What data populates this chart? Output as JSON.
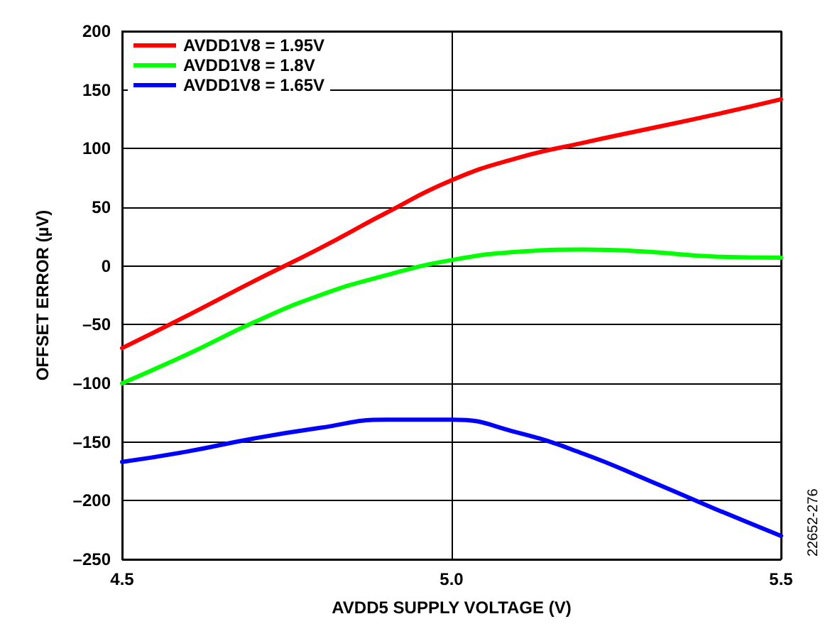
{
  "chart_data": {
    "type": "line",
    "xlabel": "AVDD5 SUPPLY VOLTAGE (V)",
    "ylabel": "OFFSET ERROR (µV)",
    "x": [
      4.5,
      4.6,
      4.7,
      4.8,
      4.9,
      5.0,
      5.1,
      5.2,
      5.3,
      5.4,
      5.5
    ],
    "series": [
      {
        "name": "AVDD1V8 = 1.95V",
        "color": "#ff0000",
        "values": [
          -70,
          -42,
          -13,
          15,
          45,
          73,
          92,
          105,
          117,
          129,
          142
        ]
      },
      {
        "name": "AVDD1V8 = 1.8V",
        "color": "#00ff00",
        "values": [
          -100,
          -75,
          -48,
          -25,
          -8,
          5,
          12,
          14,
          12,
          8,
          7
        ]
      },
      {
        "name": "AVDD1V8 = 1.65V",
        "color": "#0000ff",
        "values": [
          -167,
          -158,
          -147,
          -138,
          -131,
          -131,
          -142,
          -160,
          -183,
          -207,
          -230
        ]
      }
    ],
    "xlim": [
      4.5,
      5.5
    ],
    "xticks": [
      {
        "value": 4.5,
        "label": "4.5"
      },
      {
        "value": 5.0,
        "label": "5.0"
      },
      {
        "value": 5.5,
        "label": "5.5"
      }
    ],
    "ylim": [
      -250,
      200
    ],
    "yticks": [
      {
        "value": -250,
        "label": "–250"
      },
      {
        "value": -200,
        "label": "–200"
      },
      {
        "value": -150,
        "label": "–150"
      },
      {
        "value": -100,
        "label": "–100"
      },
      {
        "value": -50,
        "label": "–50"
      },
      0,
      50,
      100,
      150,
      200
    ],
    "grid": true,
    "legend": "top left",
    "marker": "none",
    "line_style": "solid",
    "annotations": [
      "22652-276"
    ]
  }
}
